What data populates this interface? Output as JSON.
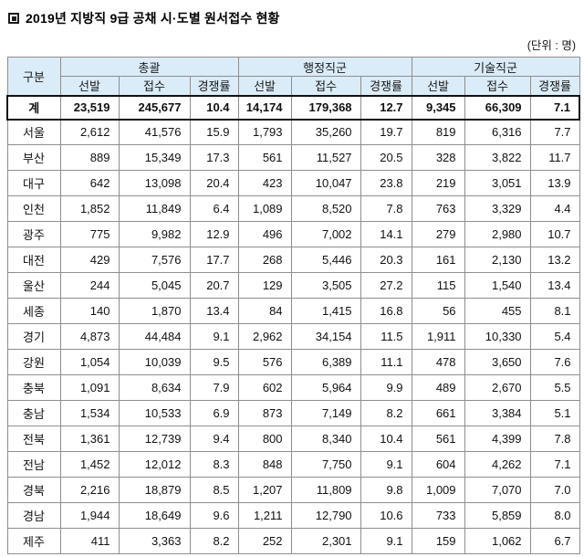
{
  "title": {
    "text": "2019년 지방직 9급 공채 시·도별 원서접수 현황"
  },
  "unit_label": "(단위 : 명)",
  "colors": {
    "header_bg": "#daecf8",
    "grid_border": "#8e8e8e",
    "total_row_border": "#111111",
    "province_divider": "#3c3c3c"
  },
  "chart_data": {
    "type": "table",
    "title": "2019년 지방직 9급 공채 시·도별 원서접수 현황",
    "unit": "명",
    "corner_header": "구분",
    "groups": [
      {
        "label": "총괄"
      },
      {
        "label": "행정직군"
      },
      {
        "label": "기술직군"
      }
    ],
    "sub_columns": [
      "선발",
      "접수",
      "경쟁률"
    ],
    "total_row": {
      "label": "계",
      "values": [
        "23,519",
        "245,677",
        "10.4",
        "14,174",
        "179,368",
        "12.7",
        "9,345",
        "66,309",
        "7.1"
      ]
    },
    "rows": [
      {
        "label": "서울",
        "values": [
          "2,612",
          "41,576",
          "15.9",
          "1,793",
          "35,260",
          "19.7",
          "819",
          "6,316",
          "7.7"
        ]
      },
      {
        "label": "부산",
        "values": [
          "889",
          "15,349",
          "17.3",
          "561",
          "11,527",
          "20.5",
          "328",
          "3,822",
          "11.7"
        ]
      },
      {
        "label": "대구",
        "values": [
          "642",
          "13,098",
          "20.4",
          "423",
          "10,047",
          "23.8",
          "219",
          "3,051",
          "13.9"
        ]
      },
      {
        "label": "인천",
        "values": [
          "1,852",
          "11,849",
          "6.4",
          "1,089",
          "8,520",
          "7.8",
          "763",
          "3,329",
          "4.4"
        ]
      },
      {
        "label": "광주",
        "values": [
          "775",
          "9,982",
          "12.9",
          "496",
          "7,002",
          "14.1",
          "279",
          "2,980",
          "10.7"
        ]
      },
      {
        "label": "대전",
        "values": [
          "429",
          "7,576",
          "17.7",
          "268",
          "5,446",
          "20.3",
          "161",
          "2,130",
          "13.2"
        ]
      },
      {
        "label": "울산",
        "values": [
          "244",
          "5,045",
          "20.7",
          "129",
          "3,505",
          "27.2",
          "115",
          "1,540",
          "13.4"
        ]
      },
      {
        "label": "세종",
        "values": [
          "140",
          "1,870",
          "13.4",
          "84",
          "1,415",
          "16.8",
          "56",
          "455",
          "8.1"
        ]
      },
      {
        "label": "경기",
        "divider_top": true,
        "values": [
          "4,873",
          "44,484",
          "9.1",
          "2,962",
          "34,154",
          "11.5",
          "1,911",
          "10,330",
          "5.4"
        ]
      },
      {
        "label": "강원",
        "values": [
          "1,054",
          "10,039",
          "9.5",
          "576",
          "6,389",
          "11.1",
          "478",
          "3,650",
          "7.6"
        ]
      },
      {
        "label": "충북",
        "values": [
          "1,091",
          "8,634",
          "7.9",
          "602",
          "5,964",
          "9.9",
          "489",
          "2,670",
          "5.5"
        ]
      },
      {
        "label": "충남",
        "values": [
          "1,534",
          "10,533",
          "6.9",
          "873",
          "7,149",
          "8.2",
          "661",
          "3,384",
          "5.1"
        ]
      },
      {
        "label": "전북",
        "values": [
          "1,361",
          "12,739",
          "9.4",
          "800",
          "8,340",
          "10.4",
          "561",
          "4,399",
          "7.8"
        ]
      },
      {
        "label": "전남",
        "values": [
          "1,452",
          "12,012",
          "8.3",
          "848",
          "7,750",
          "9.1",
          "604",
          "4,262",
          "7.1"
        ]
      },
      {
        "label": "경북",
        "values": [
          "2,216",
          "18,879",
          "8.5",
          "1,207",
          "11,809",
          "9.8",
          "1,009",
          "7,070",
          "7.0"
        ]
      },
      {
        "label": "경남",
        "values": [
          "1,944",
          "18,649",
          "9.6",
          "1,211",
          "12,790",
          "10.6",
          "733",
          "5,859",
          "8.0"
        ]
      },
      {
        "label": "제주",
        "values": [
          "411",
          "3,363",
          "8.2",
          "252",
          "2,301",
          "9.1",
          "159",
          "1,062",
          "6.7"
        ]
      }
    ]
  }
}
